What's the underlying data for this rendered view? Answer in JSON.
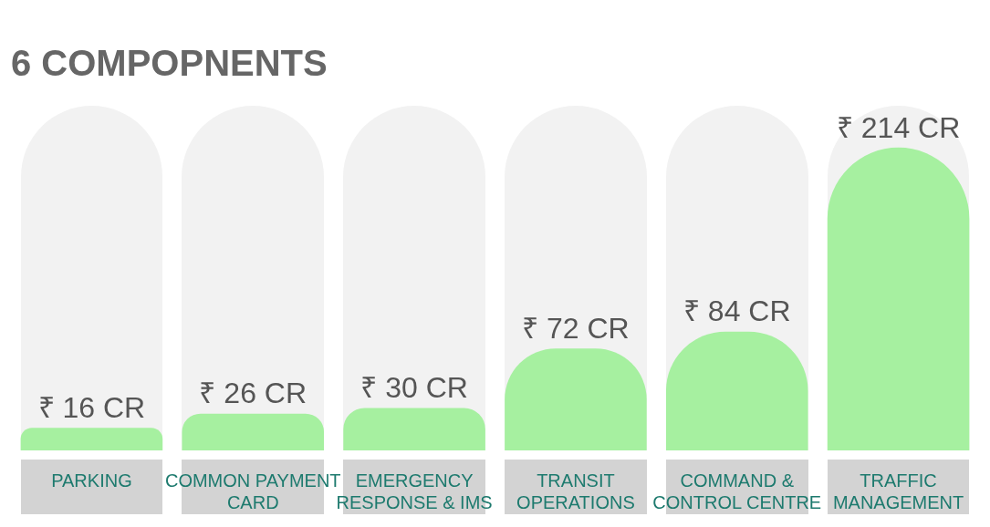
{
  "chart_data": {
    "type": "bar",
    "title": "6 COMPOPNENTS",
    "categories": [
      "PARKING",
      "COMMON PAYMENT CARD",
      "EMERGENCY RESPONSE & IMS",
      "TRANSIT OPERATIONS",
      "COMMAND & CONTROL CENTRE",
      "TRAFFIC MANAGEMENT"
    ],
    "values": [
      16,
      26,
      30,
      72,
      84,
      214
    ],
    "value_labels": [
      "₹ 16 CR",
      "₹ 26 CR",
      "₹ 30 CR",
      "₹ 72 CR",
      "₹ 84 CR",
      "₹ 214 CR"
    ],
    "color": "#a6f0a0",
    "grid": false,
    "legend": false
  }
}
